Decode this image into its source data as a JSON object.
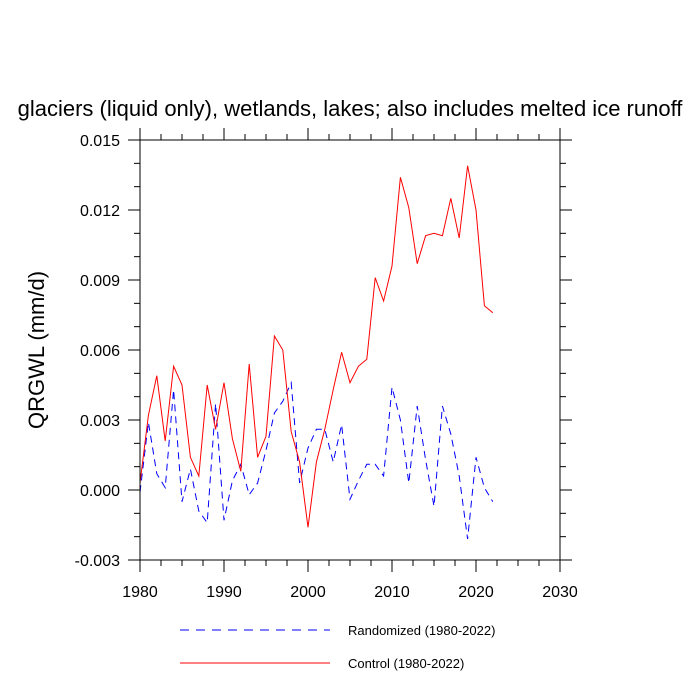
{
  "chart_data": {
    "type": "line",
    "title": "glaciers (liquid only), wetlands, lakes; also includes melted ice runoff",
    "xlabel": "",
    "ylabel": "QRGWL  (mm/d)",
    "xlim": [
      1980,
      2030
    ],
    "ylim": [
      -0.003,
      0.015
    ],
    "xticks": [
      1980,
      1990,
      2000,
      2010,
      2020,
      2030
    ],
    "xtick_labels": [
      "1980",
      "1990",
      "2000",
      "2010",
      "2020",
      "2030"
    ],
    "yticks": [
      -0.003,
      0.0,
      0.003,
      0.006,
      0.009,
      0.012,
      0.015
    ],
    "ytick_labels": [
      "-0.003",
      "0.000",
      "0.003",
      "0.006",
      "0.009",
      "0.012",
      "0.015"
    ],
    "legend_position": "bottom",
    "series": [
      {
        "name": "Randomized (1980-2022)",
        "color": "#0000ff",
        "style": "dashed",
        "x": [
          1980,
          1981,
          1982,
          1983,
          1984,
          1985,
          1986,
          1987,
          1988,
          1989,
          1990,
          1991,
          1992,
          1993,
          1994,
          1995,
          1996,
          1997,
          1998,
          1999,
          2000,
          2001,
          2002,
          2003,
          2004,
          2005,
          2006,
          2007,
          2008,
          2009,
          2010,
          2011,
          2012,
          2013,
          2014,
          2015,
          2016,
          2017,
          2018,
          2019,
          2020,
          2021,
          2022
        ],
        "values": [
          -0.0001,
          0.0029,
          0.0007,
          0.0001,
          0.0043,
          -0.0005,
          0.0009,
          -0.0009,
          -0.0014,
          0.0037,
          -0.0013,
          0.0004,
          0.0011,
          -0.0002,
          0.0003,
          0.0017,
          0.0033,
          0.0038,
          0.0046,
          0.0003,
          0.0018,
          0.0026,
          0.0026,
          0.0012,
          0.0028,
          -0.0004,
          0.0004,
          0.0011,
          0.0011,
          0.0006,
          0.0044,
          0.003,
          0.0003,
          0.0036,
          0.0013,
          -0.0007,
          0.0036,
          0.0024,
          0.0006,
          -0.0021,
          0.0014,
          0.0001,
          -0.0005
        ]
      },
      {
        "name": "Control (1980-2022)",
        "color": "#ff0000",
        "style": "solid",
        "x": [
          1980,
          1981,
          1982,
          1983,
          1984,
          1985,
          1986,
          1987,
          1988,
          1989,
          1990,
          1991,
          1992,
          1993,
          1994,
          1995,
          1996,
          1997,
          1998,
          1999,
          2000,
          2001,
          2002,
          2003,
          2004,
          2005,
          2006,
          2007,
          2008,
          2009,
          2010,
          2011,
          2012,
          2013,
          2014,
          2015,
          2016,
          2017,
          2018,
          2019,
          2020,
          2021,
          2022
        ],
        "values": [
          0.0003,
          0.0032,
          0.0049,
          0.0021,
          0.0053,
          0.0045,
          0.0014,
          0.0006,
          0.0045,
          0.0026,
          0.0046,
          0.0022,
          0.0008,
          0.0054,
          0.0014,
          0.0023,
          0.0066,
          0.006,
          0.0025,
          0.0012,
          -0.0016,
          0.0012,
          0.0026,
          0.0043,
          0.0059,
          0.0046,
          0.0053,
          0.0056,
          0.0091,
          0.0081,
          0.0096,
          0.0134,
          0.0121,
          0.0097,
          0.0109,
          0.011,
          0.0109,
          0.0125,
          0.0108,
          0.0139,
          0.012,
          0.0079,
          0.0076
        ]
      }
    ]
  }
}
